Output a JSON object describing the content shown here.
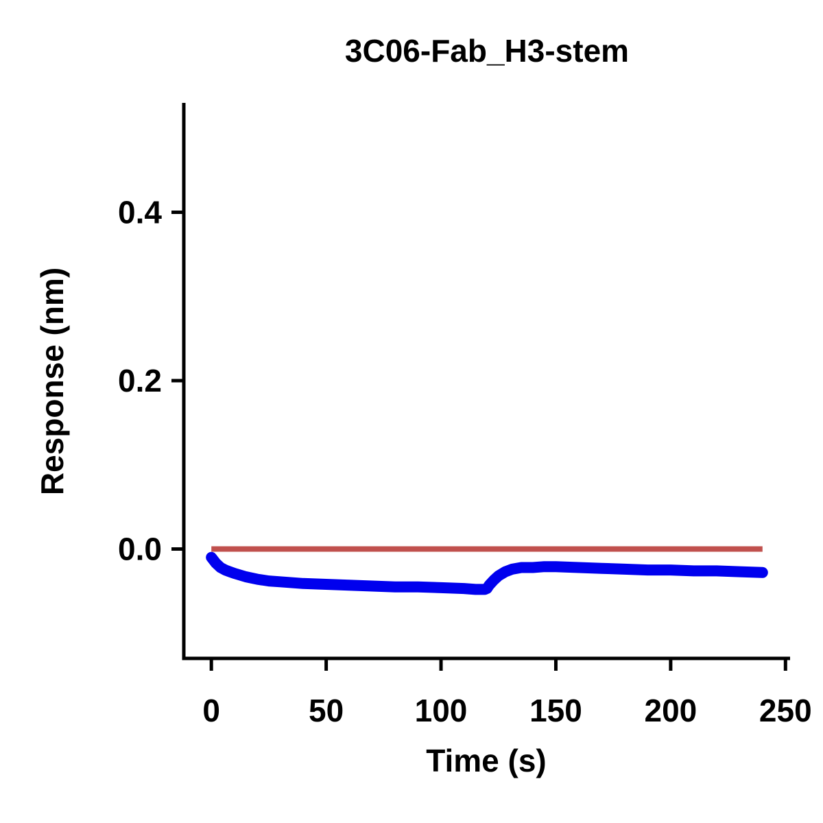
{
  "chart_data": {
    "type": "line",
    "title": "3C06-Fab_H3-stem",
    "xlabel": "Time (s)",
    "ylabel": "Response (nm)",
    "xlim": [
      -12,
      252
    ],
    "ylim": [
      -0.13,
      0.53
    ],
    "xticks": [
      0,
      50,
      100,
      150,
      200,
      250
    ],
    "xtick_labels": [
      "0",
      "50",
      "100",
      "150",
      "200",
      "250"
    ],
    "yticks": [
      0.0,
      0.2,
      0.4
    ],
    "ytick_labels": [
      "0.0",
      "0.2",
      "0.4"
    ],
    "grid": false,
    "series": [
      {
        "color": "#0000ee",
        "style": "thick-line",
        "x": [
          0,
          2,
          4,
          6,
          8,
          10,
          15,
          20,
          25,
          30,
          40,
          50,
          60,
          70,
          80,
          90,
          100,
          110,
          115,
          119,
          120,
          121,
          123,
          125,
          128,
          131,
          135,
          140,
          145,
          150,
          160,
          170,
          180,
          190,
          200,
          210,
          220,
          230,
          240
        ],
        "y": [
          -0.01,
          -0.017,
          -0.022,
          -0.025,
          -0.027,
          -0.029,
          -0.033,
          -0.036,
          -0.038,
          -0.039,
          -0.041,
          -0.042,
          -0.043,
          -0.044,
          -0.045,
          -0.045,
          -0.046,
          -0.047,
          -0.048,
          -0.048,
          -0.047,
          -0.043,
          -0.037,
          -0.032,
          -0.027,
          -0.024,
          -0.022,
          -0.022,
          -0.021,
          -0.021,
          -0.022,
          -0.023,
          -0.024,
          -0.025,
          -0.025,
          -0.026,
          -0.026,
          -0.027,
          -0.028
        ]
      },
      {
        "color": "#c0504d",
        "style": "line",
        "x": [
          0,
          240
        ],
        "y": [
          0.0,
          0.0
        ]
      }
    ]
  }
}
